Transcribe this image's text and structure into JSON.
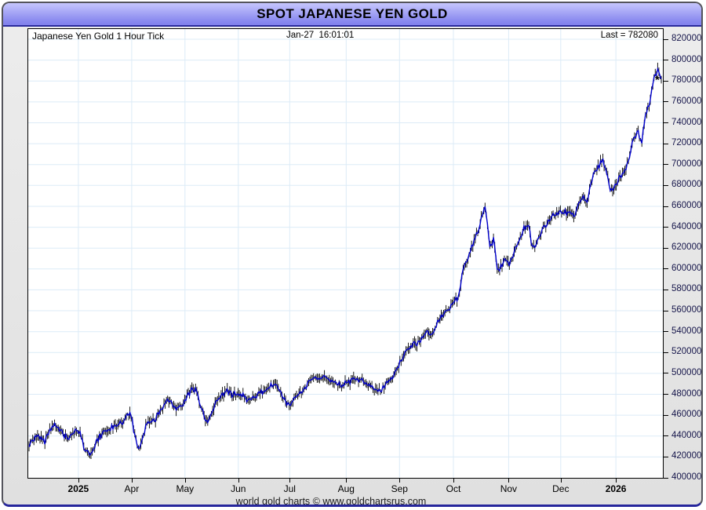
{
  "window": {
    "title": "SPOT JAPANESE YEN GOLD",
    "footer": "world gold charts © www.goldchartsrus.com"
  },
  "header": {
    "instrument": "Japanese Yen Gold 1 Hour Tick",
    "timestamp": "Jan-27  16:01:01",
    "last_label": "Last = 782080"
  },
  "colors": {
    "line": "#0000cd",
    "bar_shadow": "#000000",
    "grid": "#dcebf7",
    "titlebar_top": "#c6c6fd",
    "titlebar_bottom": "#8080ec",
    "titlebar_border": "#2a2a9c",
    "window_border": "#54545c",
    "window_bottom_border": "#26269c",
    "axis_label": "#15154a",
    "plot_bg": "#ffffff",
    "body_bg": "#e6e6e6"
  },
  "chart_data": {
    "type": "line",
    "title": "SPOT JAPANESE YEN GOLD",
    "subtitle": "Japanese Yen Gold 1 Hour Tick",
    "timestamp": "Jan-27 16:01:01",
    "last": 782080,
    "grid": true,
    "legend_position": "none",
    "style": "hourly tick bars (black high-low wicks) with blue close line, asterisk marker at last price",
    "y_axis": {
      "min": 400000,
      "max": 820000,
      "step": 20000,
      "side": "right",
      "labels": [
        "820000",
        "800000",
        "780000",
        "760000",
        "740000",
        "720000",
        "700000",
        "680000",
        "660000",
        "640000",
        "620000",
        "600000",
        "580000",
        "560000",
        "540000",
        "520000",
        "500000",
        "480000",
        "460000",
        "440000",
        "420000",
        "400000"
      ]
    },
    "x_ticks": [
      {
        "label": "2025",
        "pos": 0.079,
        "bold": true
      },
      {
        "label": "Apr",
        "pos": 0.163,
        "bold": false
      },
      {
        "label": "May",
        "pos": 0.247,
        "bold": false
      },
      {
        "label": "Jun",
        "pos": 0.331,
        "bold": false
      },
      {
        "label": "Jul",
        "pos": 0.412,
        "bold": false
      },
      {
        "label": "Aug",
        "pos": 0.501,
        "bold": false
      },
      {
        "label": "Sep",
        "pos": 0.585,
        "bold": false
      },
      {
        "label": "Oct",
        "pos": 0.67,
        "bold": false
      },
      {
        "label": "Nov",
        "pos": 0.757,
        "bold": false
      },
      {
        "label": "Dec",
        "pos": 0.839,
        "bold": false
      },
      {
        "label": "2026",
        "pos": 0.926,
        "bold": true
      }
    ],
    "series": [
      {
        "name": "Japanese Yen Gold (JPY per oz)",
        "color": "#0000cd",
        "sampling": "values evenly spaced along full x-range, left edge to last tick",
        "values": [
          432000,
          436000,
          441000,
          438000,
          434000,
          443000,
          448000,
          451000,
          446000,
          441000,
          438000,
          443000,
          447000,
          444000,
          430000,
          425000,
          424000,
          432000,
          439000,
          443000,
          446000,
          448000,
          450000,
          451000,
          453000,
          458000,
          462000,
          443000,
          427000,
          439000,
          450000,
          456000,
          453000,
          460000,
          466000,
          473000,
          475000,
          470000,
          465000,
          470000,
          474000,
          480000,
          485000,
          483000,
          470000,
          458000,
          453000,
          464000,
          472000,
          477000,
          480000,
          483000,
          479000,
          481000,
          480000,
          478000,
          474000,
          476000,
          478000,
          480000,
          483000,
          486000,
          489000,
          492000,
          485000,
          478000,
          470000,
          468000,
          475000,
          481000,
          484000,
          488000,
          492000,
          494000,
          496000,
          497000,
          498000,
          494000,
          490000,
          492000,
          488000,
          490000,
          492000,
          494000,
          495000,
          494000,
          492000,
          489000,
          487000,
          485000,
          483000,
          487000,
          492000,
          496000,
          502000,
          510000,
          519000,
          524000,
          528000,
          528000,
          530000,
          537000,
          541000,
          537000,
          543000,
          551000,
          556000,
          560000,
          564000,
          568000,
          574000,
          596000,
          607000,
          618000,
          626000,
          637000,
          650000,
          660000,
          620000,
          628000,
          598000,
          603000,
          611000,
          604000,
          612000,
          625000,
          633000,
          640000,
          642000,
          619000,
          625000,
          632000,
          640000,
          646000,
          650000,
          652000,
          655000,
          656000,
          652000,
          654000,
          652000,
          665000,
          668000,
          666000,
          683000,
          694000,
          699000,
          705000,
          694000,
          674000,
          678000,
          686000,
          691000,
          698000,
          711000,
          725000,
          731000,
          722000,
          747000,
          760000,
          781000,
          790000,
          782080
        ]
      }
    ]
  }
}
